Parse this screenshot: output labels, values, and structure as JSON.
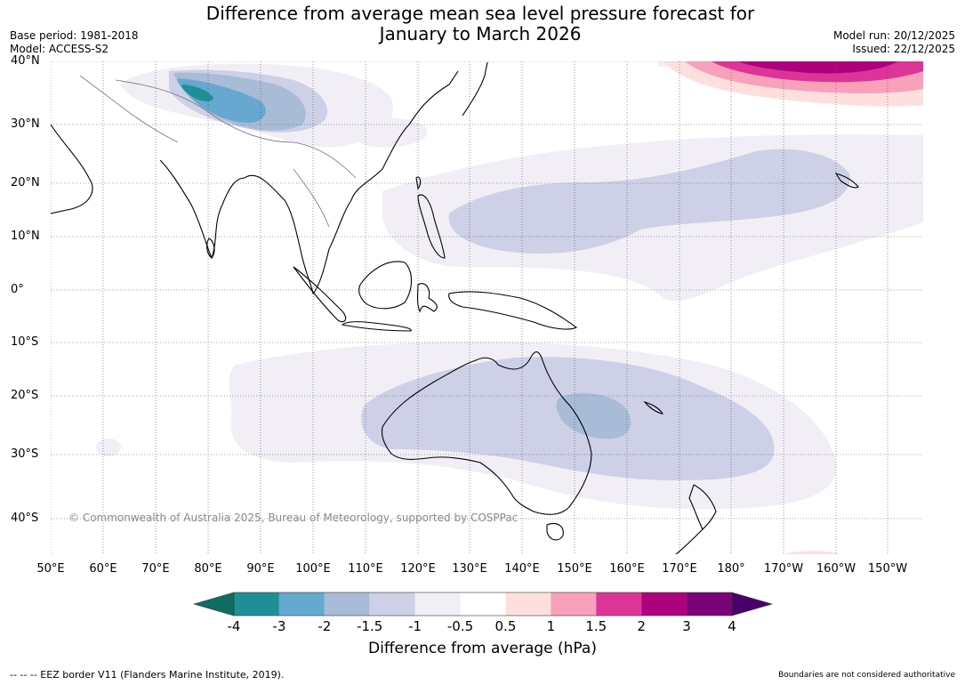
{
  "header": {
    "title_line1": "Difference from average mean sea level pressure forecast for",
    "title_line2": "January to March 2026",
    "base_period": "Base period: 1981-2018",
    "model": "Model: ACCESS-S2",
    "model_run": "Model run: 20/12/2025",
    "issued": "Issued: 22/12/2025"
  },
  "map": {
    "lat_labels": [
      "40°N",
      "30°N",
      "20°N",
      "10°N",
      "0°",
      "10°S",
      "20°S",
      "30°S",
      "40°S"
    ],
    "lon_labels": [
      "50°E",
      "60°E",
      "70°E",
      "80°E",
      "90°E",
      "100°E",
      "110°E",
      "120°E",
      "130°E",
      "140°E",
      "150°E",
      "160°E",
      "170°E",
      "180°",
      "170°W",
      "160°W",
      "150°W"
    ],
    "copyright": "© Commonwealth of Australia 2025, Bureau of Meteorology, supported by COSPPac"
  },
  "colorbar": {
    "title": "Difference from average (hPa)",
    "ticks": [
      "-4",
      "-3",
      "-2",
      "-1.5",
      "-1",
      "-0.5",
      "0.5",
      "1",
      "1.5",
      "2",
      "3",
      "4"
    ],
    "colors": [
      "#0f6e5f",
      "#1e8f96",
      "#66a8d0",
      "#a8bcd8",
      "#cdd0e6",
      "#f1eef6",
      "#ffffff",
      "#fde0de",
      "#f7a1bb",
      "#dd3497",
      "#ae017e",
      "#7a0177",
      "#49006a"
    ]
  },
  "footer": {
    "eez_note": "--  --  -- EEZ border V11 (Flanders Marine Institute, 2019).",
    "boundaries_note": "Boundaries are not considered authoritative"
  }
}
